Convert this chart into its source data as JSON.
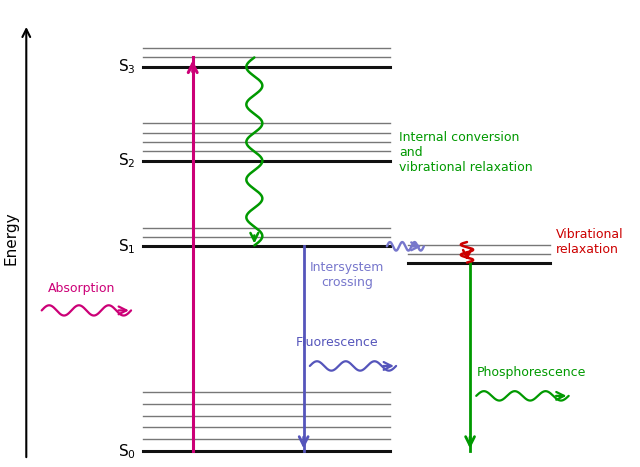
{
  "bg_color": "#ffffff",
  "figsize": [
    6.4,
    4.67
  ],
  "dpi": 100,
  "xlim": [
    0,
    10
  ],
  "ylim": [
    -0.3,
    10.5
  ],
  "s0_y": 0.0,
  "s1_y": 4.8,
  "s2_y": 6.8,
  "s3_y": 9.0,
  "t1_y": 4.4,
  "main_xl": 2.2,
  "main_xr": 6.2,
  "triplet_xl": 6.5,
  "triplet_xr": 8.8,
  "vib_offsets_s0": [
    0.28,
    0.56,
    0.84,
    1.12,
    1.4
  ],
  "vib_offsets_s1": [
    0.22,
    0.44
  ],
  "vib_offsets_s2": [
    0.22,
    0.44,
    0.66,
    0.88
  ],
  "vib_offsets_s3": [
    0.22,
    0.44
  ],
  "vib_offsets_t1": [
    0.22,
    0.44
  ],
  "abs_x": 3.0,
  "flu_x": 4.8,
  "phos_x": 7.5,
  "ic_x": 4.0,
  "colors": {
    "absorption": "#cc0077",
    "fluorescence": "#5555bb",
    "phosphorescence": "#009900",
    "internal_conversion": "#009900",
    "intersystem_crossing": "#7777cc",
    "vib_relax_triplet": "#cc0000",
    "levels_main": "#111111",
    "levels_vib": "#777777"
  },
  "lw_main": 2.2,
  "lw_vib": 1.0,
  "labels": {
    "s0": "S$_0$",
    "s1": "S$_1$",
    "s2": "S$_2$",
    "s3": "S$_3$",
    "absorption": "Absorption",
    "fluorescence": "Fluorescence",
    "phosphorescence": "Phosphorescence",
    "internal_conversion": "Internal conversion\nand\nvibrational relaxation",
    "intersystem_crossing": "Intersystem\ncrossing",
    "vibrational_relaxation": "Vibrational\nrelaxation",
    "energy": "Energy"
  }
}
